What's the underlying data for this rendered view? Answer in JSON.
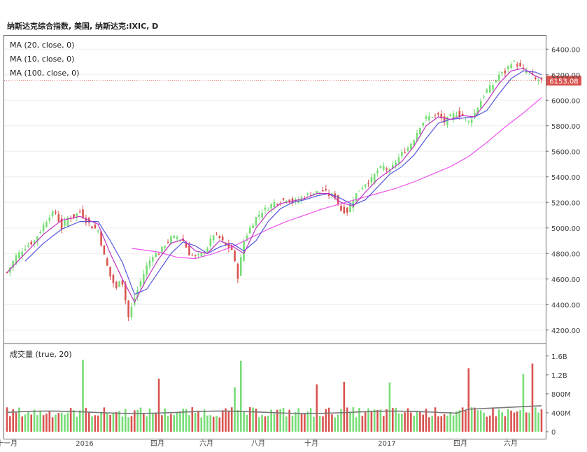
{
  "title": "纳斯达克综合指数, 美国, 纳斯达克:IXIC, D",
  "indicators": {
    "ma20": "MA (20, close, 0)",
    "ma10": "MA (10, close, 0)",
    "ma100": "MA (100, close, 0)",
    "volume": "成交量 (true, 20)"
  },
  "last_price": "6153.08",
  "colors": {
    "up": "#77dd77",
    "down": "#d9534f",
    "ma20": "#5555dd",
    "ma10": "#c030c0",
    "ma100": "#ee55ee",
    "vol_ma": "#777777",
    "price_tag": "#d9534f"
  },
  "chart_data": {
    "type": "candlestick",
    "x_ticks": [
      "十一月",
      "2016",
      "四月",
      "六月",
      "八月",
      "十月",
      "2017",
      "四月",
      "六月"
    ],
    "price_axis": {
      "min": 4200,
      "max": 6400,
      "ticks": [
        "6400.00",
        "6200.00",
        "6000.00",
        "5800.00",
        "5600.00",
        "5400.00",
        "5200.00",
        "5000.00",
        "4800.00",
        "4600.00",
        "4400.00",
        "4200.00"
      ]
    },
    "volume_axis": {
      "ticks": [
        "1.6B",
        "1.2B",
        "800M",
        "400M",
        "0"
      ]
    },
    "close_path": [
      [
        0,
        4650
      ],
      [
        3,
        4780
      ],
      [
        6,
        4850
      ],
      [
        9,
        4900
      ],
      [
        12,
        5020
      ],
      [
        14,
        5100
      ],
      [
        16,
        5120
      ],
      [
        18,
        5000
      ],
      [
        20,
        5080
      ],
      [
        22,
        5090
      ],
      [
        24,
        5130
      ],
      [
        26,
        5060
      ],
      [
        28,
        5010
      ],
      [
        30,
        4980
      ],
      [
        32,
        4780
      ],
      [
        34,
        4620
      ],
      [
        36,
        4520
      ],
      [
        37,
        4600
      ],
      [
        38,
        4570
      ],
      [
        40,
        4300
      ],
      [
        42,
        4450
      ],
      [
        44,
        4580
      ],
      [
        46,
        4700
      ],
      [
        48,
        4790
      ],
      [
        50,
        4800
      ],
      [
        52,
        4870
      ],
      [
        54,
        4920
      ],
      [
        56,
        4930
      ],
      [
        58,
        4900
      ],
      [
        60,
        4800
      ],
      [
        62,
        4770
      ],
      [
        64,
        4790
      ],
      [
        66,
        4850
      ],
      [
        68,
        4950
      ],
      [
        70,
        4920
      ],
      [
        72,
        4860
      ],
      [
        74,
        4830
      ],
      [
        76,
        4620
      ],
      [
        78,
        4900
      ],
      [
        80,
        5000
      ],
      [
        82,
        5080
      ],
      [
        84,
        5130
      ],
      [
        86,
        5160
      ],
      [
        88,
        5200
      ],
      [
        90,
        5210
      ],
      [
        92,
        5230
      ],
      [
        94,
        5200
      ],
      [
        96,
        5220
      ],
      [
        98,
        5250
      ],
      [
        100,
        5270
      ],
      [
        102,
        5280
      ],
      [
        104,
        5290
      ],
      [
        106,
        5260
      ],
      [
        108,
        5250
      ],
      [
        110,
        5140
      ],
      [
        112,
        5130
      ],
      [
        114,
        5230
      ],
      [
        116,
        5300
      ],
      [
        118,
        5350
      ],
      [
        120,
        5380
      ],
      [
        122,
        5450
      ],
      [
        124,
        5480
      ],
      [
        126,
        5440
      ],
      [
        128,
        5520
      ],
      [
        130,
        5580
      ],
      [
        132,
        5630
      ],
      [
        134,
        5700
      ],
      [
        136,
        5800
      ],
      [
        138,
        5860
      ],
      [
        140,
        5880
      ],
      [
        142,
        5880
      ],
      [
        144,
        5830
      ],
      [
        146,
        5870
      ],
      [
        148,
        5900
      ],
      [
        150,
        5880
      ],
      [
        152,
        5830
      ],
      [
        154,
        5900
      ],
      [
        156,
        6000
      ],
      [
        158,
        6080
      ],
      [
        160,
        6120
      ],
      [
        162,
        6200
      ],
      [
        164,
        6220
      ],
      [
        166,
        6300
      ],
      [
        168,
        6280
      ],
      [
        170,
        6230
      ],
      [
        172,
        6220
      ],
      [
        174,
        6160
      ],
      [
        176,
        6153
      ]
    ],
    "ma10": [
      [
        0,
        4650
      ],
      [
        6,
        4800
      ],
      [
        12,
        4950
      ],
      [
        18,
        5060
      ],
      [
        24,
        5090
      ],
      [
        30,
        5030
      ],
      [
        34,
        4800
      ],
      [
        38,
        4600
      ],
      [
        42,
        4420
      ],
      [
        46,
        4600
      ],
      [
        50,
        4760
      ],
      [
        54,
        4880
      ],
      [
        58,
        4910
      ],
      [
        62,
        4820
      ],
      [
        66,
        4800
      ],
      [
        70,
        4900
      ],
      [
        74,
        4860
      ],
      [
        78,
        4800
      ],
      [
        82,
        5000
      ],
      [
        86,
        5120
      ],
      [
        90,
        5190
      ],
      [
        94,
        5210
      ],
      [
        98,
        5230
      ],
      [
        102,
        5270
      ],
      [
        106,
        5270
      ],
      [
        110,
        5200
      ],
      [
        114,
        5170
      ],
      [
        118,
        5280
      ],
      [
        122,
        5380
      ],
      [
        126,
        5450
      ],
      [
        130,
        5520
      ],
      [
        134,
        5640
      ],
      [
        138,
        5800
      ],
      [
        142,
        5870
      ],
      [
        146,
        5850
      ],
      [
        150,
        5880
      ],
      [
        154,
        5870
      ],
      [
        158,
        5990
      ],
      [
        162,
        6130
      ],
      [
        166,
        6230
      ],
      [
        170,
        6250
      ],
      [
        174,
        6190
      ],
      [
        176,
        6170
      ]
    ],
    "ma20": [
      [
        6,
        4740
      ],
      [
        12,
        4880
      ],
      [
        18,
        4990
      ],
      [
        24,
        5050
      ],
      [
        30,
        5050
      ],
      [
        34,
        4900
      ],
      [
        38,
        4730
      ],
      [
        42,
        4480
      ],
      [
        46,
        4520
      ],
      [
        50,
        4660
      ],
      [
        54,
        4800
      ],
      [
        58,
        4890
      ],
      [
        62,
        4860
      ],
      [
        66,
        4800
      ],
      [
        70,
        4850
      ],
      [
        74,
        4880
      ],
      [
        78,
        4820
      ],
      [
        82,
        4900
      ],
      [
        86,
        5050
      ],
      [
        90,
        5150
      ],
      [
        94,
        5200
      ],
      [
        98,
        5220
      ],
      [
        102,
        5250
      ],
      [
        106,
        5270
      ],
      [
        110,
        5230
      ],
      [
        114,
        5180
      ],
      [
        118,
        5220
      ],
      [
        122,
        5320
      ],
      [
        126,
        5420
      ],
      [
        130,
        5480
      ],
      [
        134,
        5570
      ],
      [
        138,
        5700
      ],
      [
        142,
        5820
      ],
      [
        146,
        5850
      ],
      [
        150,
        5860
      ],
      [
        154,
        5870
      ],
      [
        158,
        5920
      ],
      [
        162,
        6050
      ],
      [
        166,
        6170
      ],
      [
        170,
        6230
      ],
      [
        174,
        6220
      ],
      [
        176,
        6200
      ]
    ],
    "ma100": [
      [
        41,
        4840
      ],
      [
        50,
        4810
      ],
      [
        56,
        4770
      ],
      [
        62,
        4760
      ],
      [
        68,
        4800
      ],
      [
        74,
        4850
      ],
      [
        80,
        4920
      ],
      [
        86,
        4990
      ],
      [
        92,
        5050
      ],
      [
        98,
        5100
      ],
      [
        104,
        5150
      ],
      [
        110,
        5190
      ],
      [
        116,
        5230
      ],
      [
        122,
        5270
      ],
      [
        128,
        5310
      ],
      [
        134,
        5360
      ],
      [
        140,
        5420
      ],
      [
        146,
        5480
      ],
      [
        152,
        5560
      ],
      [
        158,
        5670
      ],
      [
        164,
        5790
      ],
      [
        170,
        5900
      ],
      [
        176,
        6020
      ]
    ],
    "volume_spikes": [
      {
        "i": 25,
        "v": 1520,
        "dir": "up"
      },
      {
        "i": 50,
        "v": 1120,
        "dir": "down"
      },
      {
        "i": 77,
        "v": 1500,
        "dir": "up"
      },
      {
        "i": 75,
        "v": 940,
        "dir": "up"
      },
      {
        "i": 102,
        "v": 1000,
        "dir": "down"
      },
      {
        "i": 111,
        "v": 1050,
        "dir": "down"
      },
      {
        "i": 126,
        "v": 1040,
        "dir": "up"
      },
      {
        "i": 152,
        "v": 1340,
        "dir": "down"
      },
      {
        "i": 170,
        "v": 1220,
        "dir": "up"
      },
      {
        "i": 173,
        "v": 1440,
        "dir": "down"
      }
    ]
  }
}
